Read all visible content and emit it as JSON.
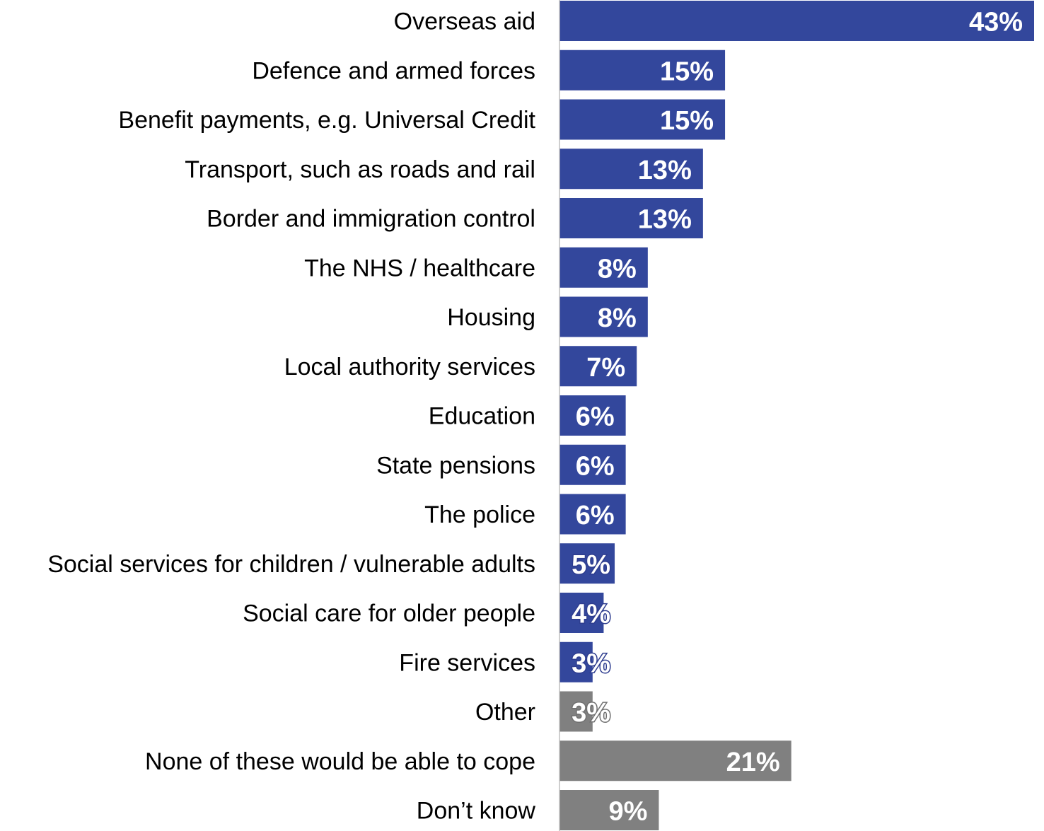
{
  "chart_data": {
    "type": "bar",
    "orientation": "horizontal",
    "title": "",
    "xlabel": "",
    "ylabel": "",
    "xlim": [
      0,
      43
    ],
    "grid": false,
    "legend": "none",
    "value_format": "{v}%",
    "colors": {
      "primary": "#33479c",
      "secondary": "#808080"
    },
    "categories": [
      "Overseas aid",
      "Defence and armed forces",
      "Benefit payments, e.g. Universal Credit",
      "Transport, such as roads and rail",
      "Border and immigration control ",
      "The NHS / healthcare ",
      "Housing",
      "Local authority services",
      "Education",
      "State pensions",
      "The police",
      "Social services for children / vulnerable adults",
      "Social care for older people",
      "Fire services",
      "Other",
      "None of these would be able to cope",
      "Don’t know"
    ],
    "values": [
      43,
      15,
      15,
      13,
      13,
      8,
      8,
      7,
      6,
      6,
      6,
      5,
      4,
      3,
      3,
      21,
      9
    ],
    "value_labels": [
      "43%",
      "15%",
      "15%",
      "13%",
      "13%",
      "8%",
      "8%",
      "7%",
      "6%",
      "6%",
      "6%",
      "5%",
      "4%",
      "3%",
      "3%",
      "21%",
      "9%"
    ],
    "bar_color_group": [
      "primary",
      "primary",
      "primary",
      "primary",
      "primary",
      "primary",
      "primary",
      "primary",
      "primary",
      "primary",
      "primary",
      "primary",
      "primary",
      "primary",
      "secondary",
      "secondary",
      "secondary"
    ]
  }
}
